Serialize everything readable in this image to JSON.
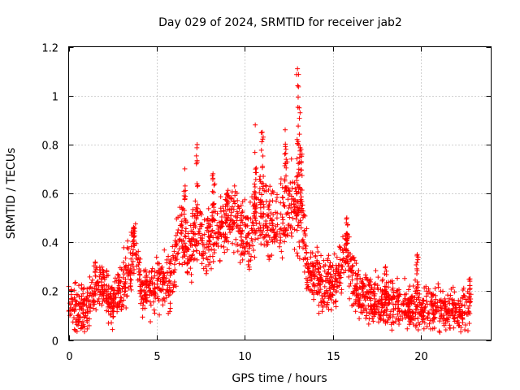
{
  "chart_data": {
    "type": "scatter",
    "title": "Day 029 of 2024, SRMTID for receiver jab2",
    "xlabel": "GPS time / hours",
    "ylabel": "SRMTID / TECUs",
    "xlim": [
      0,
      24
    ],
    "ylim": [
      0,
      1.2
    ],
    "xticks": [
      0,
      5,
      10,
      15,
      20
    ],
    "yticks": [
      0,
      0.2,
      0.4,
      0.6,
      0.8,
      1,
      1.2
    ],
    "xtick_labels": [
      "0",
      "5",
      "10",
      "15",
      "20"
    ],
    "ytick_labels": [
      "0",
      "0.2",
      "0.4",
      "0.6",
      "0.8",
      "1",
      "1.2"
    ],
    "grid": true,
    "marker": "+",
    "series": [
      {
        "name": "SRMTID",
        "color": "#ff0000",
        "profile": [
          [
            0.0,
            0.17
          ],
          [
            0.5,
            0.12
          ],
          [
            1.0,
            0.13
          ],
          [
            1.5,
            0.22
          ],
          [
            2.0,
            0.22
          ],
          [
            2.5,
            0.16
          ],
          [
            3.0,
            0.22
          ],
          [
            3.5,
            0.28
          ],
          [
            3.8,
            0.38
          ],
          [
            4.2,
            0.18
          ],
          [
            4.8,
            0.2
          ],
          [
            5.2,
            0.24
          ],
          [
            5.8,
            0.24
          ],
          [
            6.3,
            0.45
          ],
          [
            6.8,
            0.35
          ],
          [
            7.3,
            0.45
          ],
          [
            7.8,
            0.38
          ],
          [
            8.3,
            0.48
          ],
          [
            8.8,
            0.45
          ],
          [
            9.3,
            0.5
          ],
          [
            9.8,
            0.45
          ],
          [
            10.3,
            0.4
          ],
          [
            10.8,
            0.55
          ],
          [
            11.2,
            0.5
          ],
          [
            11.8,
            0.45
          ],
          [
            12.3,
            0.55
          ],
          [
            12.8,
            0.55
          ],
          [
            13.2,
            0.5
          ],
          [
            13.6,
            0.28
          ],
          [
            14.0,
            0.25
          ],
          [
            14.5,
            0.22
          ],
          [
            15.0,
            0.24
          ],
          [
            15.5,
            0.3
          ],
          [
            15.8,
            0.35
          ],
          [
            16.3,
            0.2
          ],
          [
            17.0,
            0.17
          ],
          [
            18.0,
            0.15
          ],
          [
            19.0,
            0.14
          ],
          [
            20.0,
            0.13
          ],
          [
            21.0,
            0.12
          ],
          [
            22.0,
            0.12
          ],
          [
            22.8,
            0.14
          ]
        ],
        "spikes": [
          [
            3.7,
            0.46
          ],
          [
            6.6,
            0.7
          ],
          [
            7.3,
            0.8
          ],
          [
            8.2,
            0.68
          ],
          [
            9.0,
            0.6
          ],
          [
            10.6,
            0.88
          ],
          [
            11.0,
            0.85
          ],
          [
            12.3,
            0.86
          ],
          [
            13.0,
            1.11
          ],
          [
            13.1,
            0.95
          ],
          [
            13.2,
            0.78
          ],
          [
            15.8,
            0.5
          ],
          [
            18.0,
            0.3
          ],
          [
            19.8,
            0.35
          ],
          [
            22.8,
            0.25
          ]
        ],
        "n_points": 2200,
        "spread": 0.14
      }
    ]
  }
}
